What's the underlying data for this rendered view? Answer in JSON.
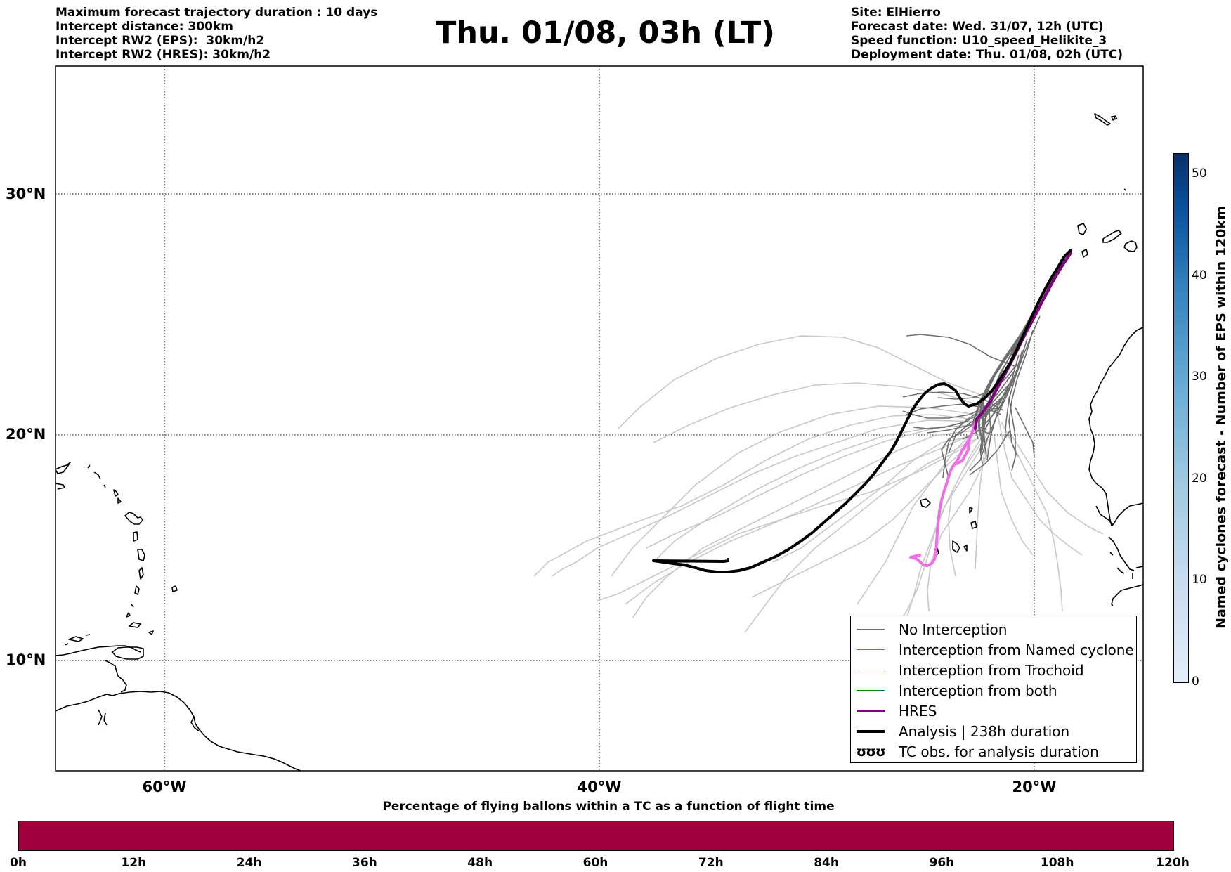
{
  "header": {
    "left_lines": [
      "Maximum forecast trajectory duration : 10 days",
      "Intercept distance: 300km",
      "Intercept RW2 (EPS):  30km/h2",
      "Intercept RW2 (HRES): 30km/h2"
    ],
    "title": "Thu. 01/08, 03h (LT)",
    "right_lines": [
      "Site: ElHierro",
      "Forecast date: Wed. 31/07, 12h (UTC)",
      "Speed function: U10_speed_Helikite_3",
      "Deployment date: Thu. 01/08, 02h (UTC)"
    ]
  },
  "map": {
    "lat_labels": [
      "30°N",
      "20°N",
      "10°N"
    ],
    "lon_labels": [
      "60°W",
      "40°W",
      "20°W"
    ],
    "colors": {
      "eps_no_interception": "#6e6e6e",
      "eps_light": "#c8c8c8",
      "hres": "#800080",
      "hres_light": "#ee6ee6",
      "analysis": "#000000",
      "coast": "#000000"
    }
  },
  "legend": {
    "items": [
      {
        "label": "No Interception",
        "color": "#6e6e6e",
        "width": 1.5,
        "icon": "line"
      },
      {
        "label": "Interception from Named cyclone",
        "color": "#ff4500",
        "width": 1.5,
        "icon": "line"
      },
      {
        "label": "Interception from Trochoid",
        "color": "#6b8e23",
        "width": 1.5,
        "icon": "line"
      },
      {
        "label": "Interception from both",
        "color": "#008000",
        "width": 1.5,
        "icon": "line"
      },
      {
        "label": "HRES",
        "color": "#800080",
        "width": 4,
        "icon": "line"
      },
      {
        "label": "Analysis | 238h duration",
        "color": "#000000",
        "width": 4,
        "icon": "line"
      },
      {
        "label": "TC obs. for analysis duration",
        "color": "#000000",
        "width": 0,
        "icon": "tc-symbol",
        "symbol": "ʊʊʊ"
      }
    ]
  },
  "colorbar_right": {
    "label": "Named cyclones forecast - Number of EPS within 120km",
    "ticks": [
      "0",
      "10",
      "20",
      "30",
      "40",
      "50"
    ],
    "min": 0,
    "max": 52
  },
  "colorbar_bottom": {
    "title": "Percentage of flying ballons within a TC as a function of flight time",
    "ticks": [
      "0h",
      "12h",
      "24h",
      "36h",
      "48h",
      "60h",
      "72h",
      "84h",
      "96h",
      "108h",
      "120h"
    ],
    "fill_color": "#9f003b"
  }
}
